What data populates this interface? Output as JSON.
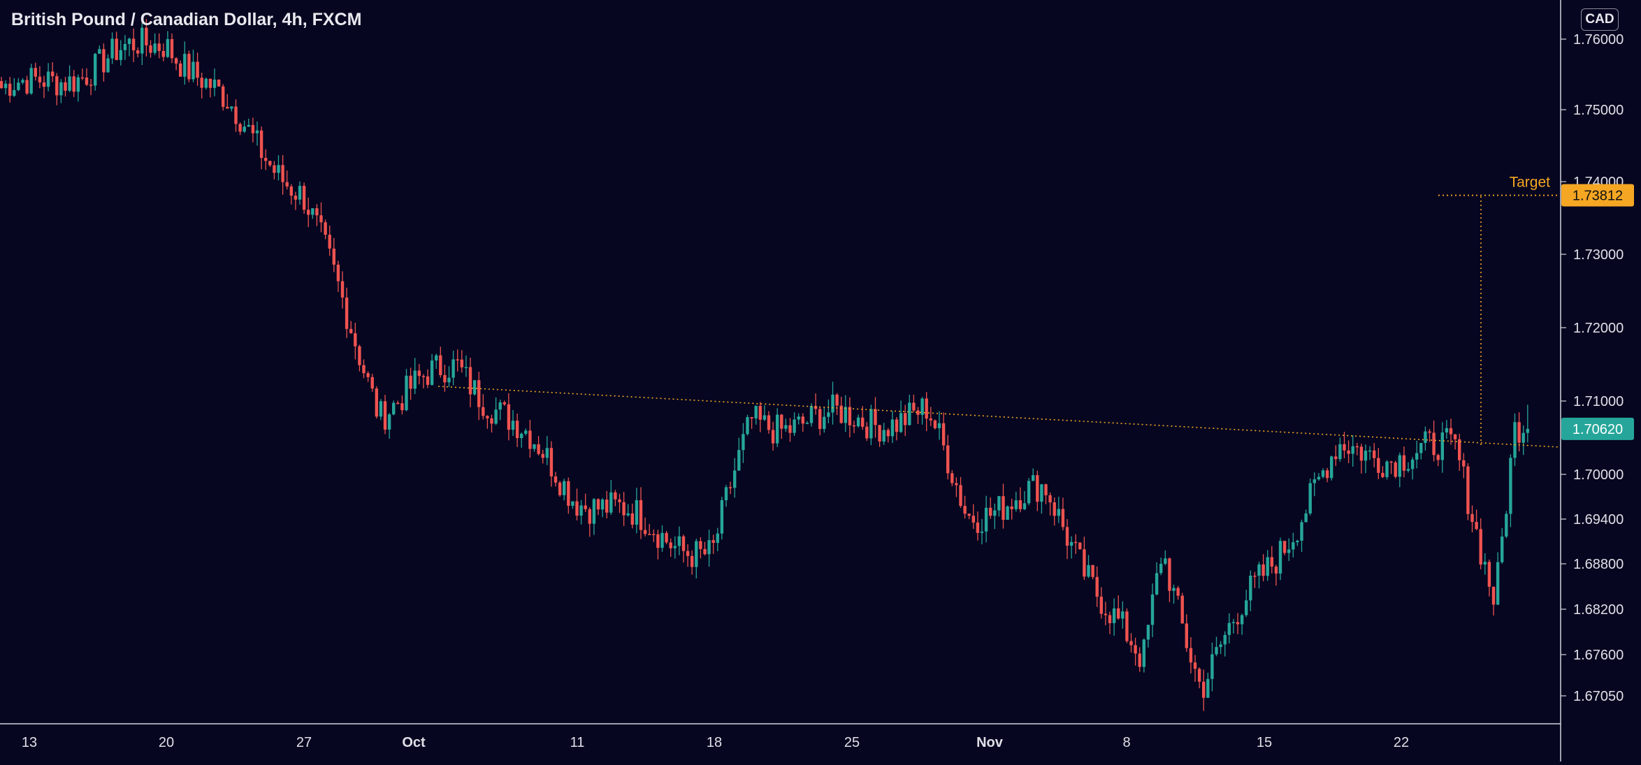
{
  "header": {
    "title": "British Pound / Canadian Dollar, 4h, FXCM",
    "currency": "CAD"
  },
  "colors": {
    "background": "#060620",
    "up": "#26a69a",
    "down": "#ef5350",
    "annotation": "#f5a623",
    "axis_line": "#d1d4dc"
  },
  "chart_data": {
    "type": "candlestick",
    "title": "British Pound / Canadian Dollar, 4h, FXCM",
    "y_axis": {
      "ticks": [
        "1.76000",
        "1.75000",
        "1.74000",
        "1.73000",
        "1.72000",
        "1.71000",
        "1.70000",
        "1.69400",
        "1.68800",
        "1.68200",
        "1.67600",
        "1.67050"
      ],
      "label_position": "right"
    },
    "x_axis": {
      "ticks": [
        "13",
        "20",
        "27",
        "Oct",
        "11",
        "18",
        "25",
        "Nov",
        "8",
        "15",
        "22"
      ]
    },
    "grid": false,
    "price_labels": {
      "target": "1.73812",
      "current": "1.70620"
    },
    "annotations": {
      "target_text": "Target",
      "target_value": 1.73812,
      "trendline": {
        "start": [
          "Oct 4",
          1.712
        ],
        "end": [
          "Nov 27",
          1.704
        ]
      },
      "target_projection": {
        "date": "Nov 26",
        "from": 1.704,
        "to": 1.73812
      }
    },
    "key_points": [
      {
        "date": "Sep 13",
        "price": 1.753
      },
      {
        "date": "Sep 20",
        "price": 1.76
      },
      {
        "date": "Sep 27",
        "price": 1.738
      },
      {
        "date": "Oct 1",
        "price": 1.709
      },
      {
        "date": "Oct 5",
        "price": 1.715
      },
      {
        "date": "Oct 11",
        "price": 1.6975
      },
      {
        "date": "Oct 18",
        "price": 1.689
      },
      {
        "date": "Oct 20",
        "price": 1.707
      },
      {
        "date": "Oct 29",
        "price": 1.708
      },
      {
        "date": "Oct 31",
        "price": 1.695
      },
      {
        "date": "Nov 4",
        "price": 1.6975
      },
      {
        "date": "Nov 9",
        "price": 1.674
      },
      {
        "date": "Nov 10",
        "price": 1.69
      },
      {
        "date": "Nov 12",
        "price": 1.672
      },
      {
        "date": "Nov 15",
        "price": 1.686
      },
      {
        "date": "Nov 19",
        "price": 1.703
      },
      {
        "date": "Nov 25",
        "price": 1.703
      },
      {
        "date": "Nov 27",
        "price": 1.684
      },
      {
        "date": "Nov 28",
        "price": 1.7062
      }
    ],
    "last_price": 1.7062
  }
}
